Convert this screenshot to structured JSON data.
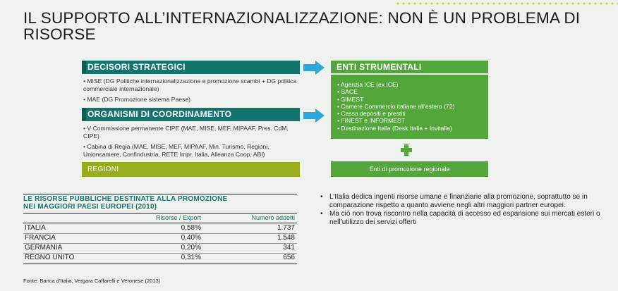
{
  "title": "IL SUPPORTO ALL’INTERNAZIONALIZZAZIONE: NON È UN PROBLEMA DI RISORSE",
  "left": {
    "decisori_title": "DECISORI STRATEGICI",
    "decisori_items": [
      "• MISE (DG Politiche internazionalizzazione e promozione scambi + DG politica commerciale internazionale)",
      "• MAE (DG Promozione sistema Paese)"
    ],
    "organismi_title": "ORGANISMI DI COORDINAMENTO",
    "organismi_items": [
      "• V Commissione permanente CIPE (MAE, MISE, MEF, MIPAAF, Pres. CdM, CIPE)",
      "• Cabina di Regia (MAE, MISE, MEF, MIPAAF, Min. Turismo, Regioni, Unioncamere, Confindustria, RETE Impr. Italia, Alleanza Coop, ABI)"
    ],
    "regioni_label": "REGIONI"
  },
  "right": {
    "enti_title": "ENTI STRUMENTALI",
    "enti_items": [
      "• Agenzia ICE (ex ICE)",
      "• SACE",
      "• SIMEST",
      "• Camere Commercio italiane all’estero (72)",
      "• Cassa depositi e prestiti",
      "• FINEST e INFORMEST",
      "• Destinazione Italia (Desk Italia + Invitalia)"
    ],
    "enti_regionali": "Enti di promozione regionale"
  },
  "table": {
    "title_line1": "LE RISORSE PUBBLICHE DESTINATE ALLA PROMOZIONE",
    "title_line2": "NEI MAGGIORI PAESI EUROPEI (2010)",
    "col1": "Risorse / Export",
    "col2": "Numero addetti",
    "rows": [
      {
        "country": "ITALIA",
        "risorse": "0,58%",
        "addetti": "1.737"
      },
      {
        "country": "FRANCIA",
        "risorse": "0,40%",
        "addetti": "1.548"
      },
      {
        "country": "GERMANIA",
        "risorse": "0,20%",
        "addetti": "341"
      },
      {
        "country": "REGNO UNITO",
        "risorse": "0,31%",
        "addetti": "656"
      }
    ]
  },
  "bullets": [
    "L’Italia dedica ingenti risorse umane e finanziarie alla promozione, soprattutto se in comparazione rispetto a quanto avviene negli altri maggiori partner europei.",
    "Ma ciò non trova riscontro nella capacità di accesso ed espansione sui mercati esteri o nell’utilizzo dei servizi offerti"
  ],
  "source": "Fonte: Banca d’Italia, Vergara Caffarelli e Veronese (2013)",
  "colors": {
    "teal": "#14756f",
    "green": "#53a73a",
    "olive": "#9aab1e",
    "arrow": "#2fa6d9",
    "accent_dots": "#c9d400"
  }
}
